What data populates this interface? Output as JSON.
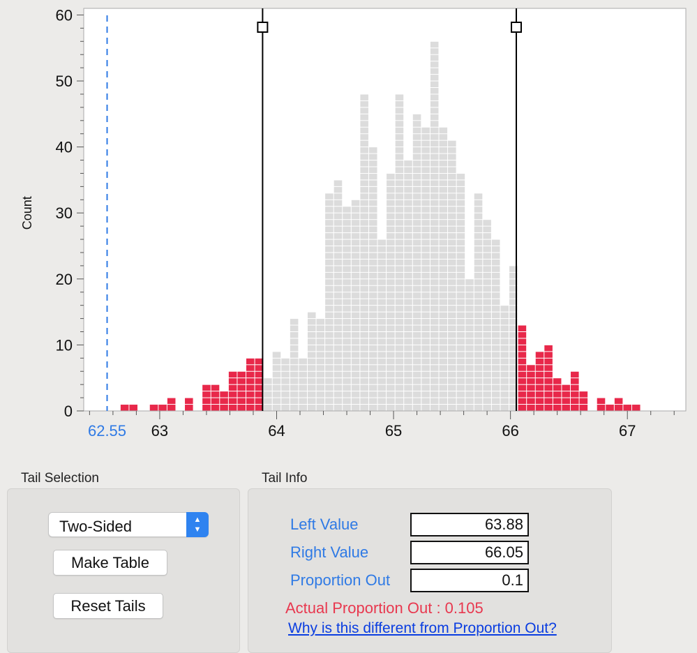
{
  "chart_data": {
    "type": "bar",
    "ylabel": "Count",
    "ylim": [
      0,
      61
    ],
    "xlim": [
      62.35,
      67.5
    ],
    "bin_width": 0.075,
    "x_ticks": [
      63,
      64,
      65,
      66,
      67
    ],
    "y_ticks": [
      0,
      10,
      20,
      30,
      40,
      50,
      60
    ],
    "reference_line": {
      "value": 62.55,
      "label": "62.55",
      "color": "#2f7ae5"
    },
    "left_tail": 63.88,
    "right_tail": 66.05,
    "bins": [
      {
        "x": 62.7,
        "count": 1
      },
      {
        "x": 62.775,
        "count": 1
      },
      {
        "x": 62.95,
        "count": 1
      },
      {
        "x": 63.025,
        "count": 1
      },
      {
        "x": 63.1,
        "count": 2
      },
      {
        "x": 63.25,
        "count": 2
      },
      {
        "x": 63.4,
        "count": 4
      },
      {
        "x": 63.475,
        "count": 4
      },
      {
        "x": 63.55,
        "count": 3
      },
      {
        "x": 63.625,
        "count": 6
      },
      {
        "x": 63.7,
        "count": 6
      },
      {
        "x": 63.775,
        "count": 8
      },
      {
        "x": 63.85,
        "count": 8
      },
      {
        "x": 63.925,
        "count": 5
      },
      {
        "x": 64.0,
        "count": 9
      },
      {
        "x": 64.075,
        "count": 8
      },
      {
        "x": 64.15,
        "count": 14
      },
      {
        "x": 64.225,
        "count": 8
      },
      {
        "x": 64.3,
        "count": 15
      },
      {
        "x": 64.375,
        "count": 14
      },
      {
        "x": 64.45,
        "count": 33
      },
      {
        "x": 64.525,
        "count": 35
      },
      {
        "x": 64.6,
        "count": 31
      },
      {
        "x": 64.675,
        "count": 32
      },
      {
        "x": 64.75,
        "count": 48
      },
      {
        "x": 64.825,
        "count": 40
      },
      {
        "x": 64.9,
        "count": 26
      },
      {
        "x": 64.975,
        "count": 36
      },
      {
        "x": 65.05,
        "count": 48
      },
      {
        "x": 65.125,
        "count": 38
      },
      {
        "x": 65.2,
        "count": 45
      },
      {
        "x": 65.275,
        "count": 43
      },
      {
        "x": 65.35,
        "count": 56
      },
      {
        "x": 65.425,
        "count": 43
      },
      {
        "x": 65.5,
        "count": 41
      },
      {
        "x": 65.575,
        "count": 36
      },
      {
        "x": 65.65,
        "count": 20
      },
      {
        "x": 65.725,
        "count": 33
      },
      {
        "x": 65.8,
        "count": 29
      },
      {
        "x": 65.875,
        "count": 26
      },
      {
        "x": 65.95,
        "count": 16
      },
      {
        "x": 66.025,
        "count": 22
      },
      {
        "x": 66.1,
        "count": 13
      },
      {
        "x": 66.175,
        "count": 7
      },
      {
        "x": 66.25,
        "count": 9
      },
      {
        "x": 66.325,
        "count": 10
      },
      {
        "x": 66.4,
        "count": 5
      },
      {
        "x": 66.475,
        "count": 4
      },
      {
        "x": 66.55,
        "count": 6
      },
      {
        "x": 66.625,
        "count": 3
      },
      {
        "x": 66.775,
        "count": 2
      },
      {
        "x": 66.85,
        "count": 1
      },
      {
        "x": 66.925,
        "count": 2
      },
      {
        "x": 67.0,
        "count": 1
      },
      {
        "x": 67.075,
        "count": 1
      }
    ]
  },
  "tail_selection": {
    "title": "Tail Selection",
    "dropdown_value": "Two-Sided",
    "make_table_label": "Make Table",
    "reset_tails_label": "Reset Tails"
  },
  "tail_info": {
    "title": "Tail Info",
    "left_value_label": "Left Value",
    "left_value": "63.88",
    "right_value_label": "Right Value",
    "right_value": "66.05",
    "proportion_out_label": "Proportion Out",
    "proportion_out": "0.1",
    "actual_proportion": "Actual Proportion Out : 0.105",
    "why_link": "Why is this different from Proportion Out?"
  },
  "colors": {
    "tail": "#e8284a",
    "body": "#dcdcdc",
    "grid_line": "#999999"
  }
}
